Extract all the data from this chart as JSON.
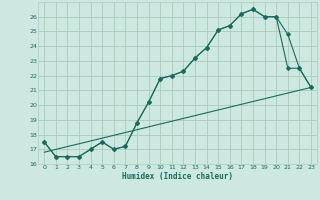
{
  "title": "",
  "xlabel": "Humidex (Indice chaleur)",
  "bg_color": "#cce8e0",
  "line_color": "#1a6b5a",
  "grid_color": "#aaccbb",
  "xlim": [
    -0.5,
    23.5
  ],
  "ylim": [
    16,
    27
  ],
  "xticks": [
    0,
    1,
    2,
    3,
    4,
    5,
    6,
    7,
    8,
    9,
    10,
    11,
    12,
    13,
    14,
    15,
    16,
    17,
    18,
    19,
    20,
    21,
    22,
    23
  ],
  "yticks": [
    16,
    17,
    18,
    19,
    20,
    21,
    22,
    23,
    24,
    25,
    26
  ],
  "line1_x": [
    0,
    1,
    2,
    3,
    4,
    5,
    6,
    7,
    8,
    9,
    10,
    11,
    12,
    13,
    14,
    15,
    16,
    17,
    18,
    19,
    20,
    21,
    22,
    23
  ],
  "line1_y": [
    17.5,
    16.5,
    16.5,
    16.5,
    17.0,
    17.5,
    17.0,
    17.2,
    18.8,
    20.2,
    21.8,
    22.0,
    22.3,
    23.2,
    23.9,
    25.1,
    25.4,
    26.2,
    26.5,
    26.0,
    26.0,
    24.8,
    22.5,
    21.2
  ],
  "line2_x": [
    0,
    1,
    2,
    3,
    4,
    5,
    6,
    7,
    8,
    9,
    10,
    11,
    12,
    13,
    14,
    15,
    16,
    17,
    18,
    19,
    20,
    21,
    22,
    23
  ],
  "line2_y": [
    17.5,
    16.5,
    16.5,
    16.5,
    17.0,
    17.5,
    17.0,
    17.2,
    18.8,
    20.2,
    21.8,
    22.0,
    22.3,
    23.2,
    23.9,
    25.1,
    25.4,
    26.2,
    26.5,
    26.0,
    26.0,
    22.5,
    22.5,
    21.2
  ],
  "line3_x": [
    0,
    23
  ],
  "line3_y": [
    16.8,
    21.2
  ]
}
